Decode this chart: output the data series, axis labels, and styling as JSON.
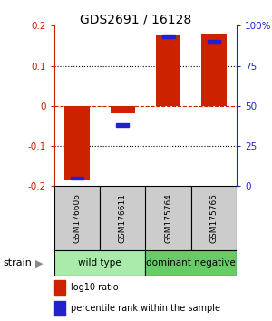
{
  "title": "GDS2691 / 16128",
  "samples": [
    "GSM176606",
    "GSM176611",
    "GSM175764",
    "GSM175765"
  ],
  "log10_ratio": [
    -0.185,
    -0.018,
    0.175,
    0.18
  ],
  "percentile_rank": [
    5,
    38,
    93,
    90
  ],
  "groups": [
    {
      "name": "wild type",
      "indices": [
        0,
        1
      ],
      "color": "#aaeaaa"
    },
    {
      "name": "dominant negative",
      "indices": [
        2,
        3
      ],
      "color": "#66cc66"
    }
  ],
  "group_label": "strain",
  "ylim": [
    -0.2,
    0.2
  ],
  "yticks_left": [
    -0.2,
    -0.1,
    0,
    0.1,
    0.2
  ],
  "yticks_right": [
    0,
    25,
    50,
    75,
    100
  ],
  "bar_color_red": "#cc2200",
  "bar_color_blue": "#2222cc",
  "legend_red_label": "log10 ratio",
  "legend_blue_label": "percentile rank within the sample",
  "zero_line_color": "#cc2200",
  "bar_width": 0.55,
  "blue_square_size": 0.008
}
